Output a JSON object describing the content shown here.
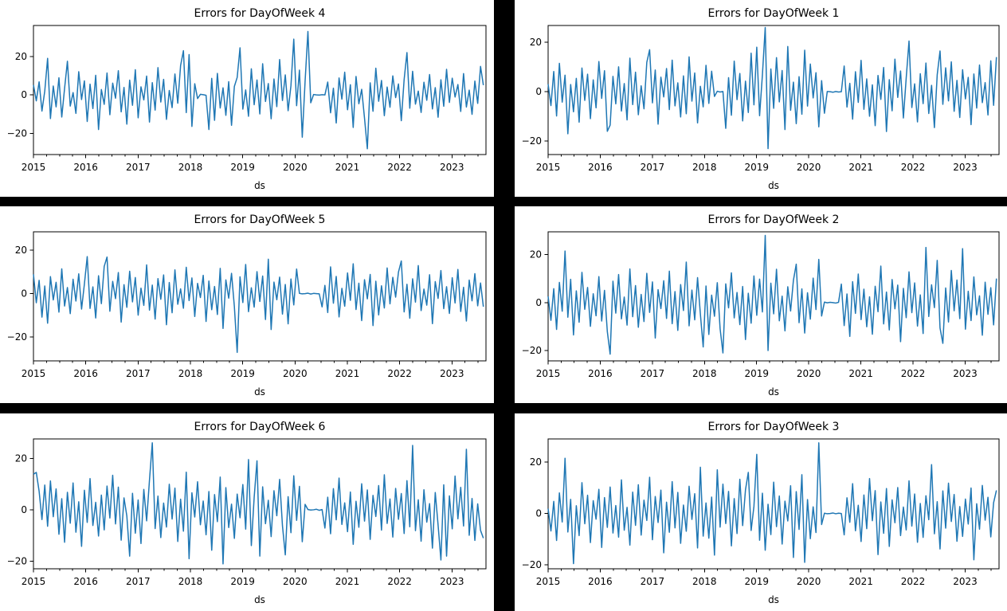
{
  "figure": {
    "background_color": "#000000",
    "panel_color": "#ffffff",
    "line_color": "#1f77b4",
    "spine_color": "#000000",
    "text_color": "#000000"
  },
  "chart_data": [
    {
      "type": "line",
      "position": "top-left",
      "title": "Errors for DayOfWeek 4",
      "xlabel": "ds",
      "ylabel": "",
      "x_start": 2015.0,
      "x_end": 2023.6,
      "xlim": [
        2015.0,
        2023.65
      ],
      "ylim": [
        -31.0,
        36.1
      ],
      "x_ticks": [
        2015,
        2016,
        2017,
        2018,
        2019,
        2020,
        2021,
        2022,
        2023
      ],
      "x_tick_labels": [
        "2015",
        "2016",
        "2017",
        "2018",
        "2019",
        "2020",
        "2021",
        "2022",
        "2023"
      ],
      "y_ticks": [
        -20,
        0,
        20
      ],
      "y_tick_labels": [
        "−20",
        "0",
        "20"
      ],
      "grid": false,
      "values": [
        5.2,
        -3.1,
        6.8,
        -8.4,
        2.1,
        19.0,
        -12.3,
        4.6,
        -6.2,
        8.9,
        -11.5,
        3.4,
        17.5,
        -5.8,
        1.2,
        -9.6,
        12.1,
        -2.4,
        7.3,
        -13.8,
        5.6,
        -7.1,
        10.2,
        -18.0,
        2.8,
        -4.9,
        11.4,
        -10.3,
        6.1,
        -1.7,
        12.6,
        -8.8,
        3.9,
        -15.2,
        7.7,
        -5.4,
        13.1,
        -11.9,
        4.2,
        -2.6,
        9.8,
        -14.1,
        6.4,
        -7.9,
        14.2,
        -3.7,
        8.1,
        -12.7,
        2.3,
        -6.6,
        10.9,
        -4.3,
        15.3,
        23.0,
        -9.2,
        21.0,
        -16.4,
        5.8,
        -1.9,
        0.3,
        0.1,
        -0.2,
        -18.0,
        8.6,
        -13.2,
        11.2,
        -6.8,
        3.7,
        -10.6,
        6.9,
        -15.8,
        4.4,
        9.1,
        24.5,
        -7.4,
        2.6,
        -11.1,
        13.6,
        -5.1,
        7.8,
        -9.9,
        16.2,
        -3.4,
        5.9,
        -12.4,
        8.3,
        -6.1,
        18.4,
        -2.9,
        10.4,
        -8.2,
        4.8,
        29.0,
        -5.6,
        12.9,
        -22.0,
        7.1,
        33.0,
        -4.1,
        0.2,
        0.0,
        -0.1,
        0.1,
        0.0,
        6.7,
        -9.3,
        3.5,
        -14.6,
        8.8,
        -2.2,
        11.8,
        -7.7,
        5.3,
        -16.9,
        9.6,
        -4.6,
        2.9,
        -12.1,
        -28.0,
        6.3,
        -8.5,
        13.9,
        -3.3,
        7.5,
        -10.8,
        4.1,
        -6.4,
        9.9,
        -1.4,
        5.7,
        -13.4,
        8.0,
        22.0,
        -6.9,
        12.3,
        -4.8,
        2.0,
        -9.1,
        6.6,
        -2.8,
        10.6,
        -7.3,
        3.8,
        -11.6,
        7.9,
        -5.9,
        13.3,
        -3.9,
        8.7,
        -1.1,
        5.4,
        -8.6,
        11.1,
        -6.3,
        2.5,
        -10.1,
        7.2,
        -4.4,
        14.8,
        5.1
      ]
    },
    {
      "type": "line",
      "position": "top-right",
      "title": "Errors for DayOfWeek 1",
      "xlabel": "ds",
      "ylabel": "",
      "x_start": 2015.0,
      "x_end": 2023.6,
      "xlim": [
        2015.0,
        2023.65
      ],
      "ylim": [
        -25.4,
        26.8
      ],
      "x_ticks": [
        2015,
        2016,
        2017,
        2018,
        2019,
        2020,
        2021,
        2022,
        2023
      ],
      "x_tick_labels": [
        "2015",
        "2016",
        "2017",
        "2018",
        "2019",
        "2020",
        "2021",
        "2022",
        "2023"
      ],
      "y_ticks": [
        -20,
        0,
        20
      ],
      "y_tick_labels": [
        "−20",
        "0",
        "20"
      ],
      "grid": false,
      "values": [
        3.1,
        -5.6,
        8.2,
        -9.8,
        11.5,
        -4.2,
        6.7,
        -17.0,
        2.9,
        -8.1,
        5.4,
        -12.3,
        9.6,
        -3.5,
        7.1,
        -10.9,
        4.8,
        -6.5,
        12.2,
        -2.7,
        8.5,
        -16.0,
        -13.5,
        6.2,
        -4.9,
        10.1,
        -7.8,
        3.3,
        -11.4,
        13.6,
        -5.2,
        7.9,
        -9.3,
        2.4,
        -6.9,
        11.9,
        17.0,
        -4.5,
        8.8,
        -13.1,
        5.9,
        -2.1,
        9.4,
        -7.2,
        12.8,
        -5.7,
        3.6,
        -10.2,
        6.4,
        -8.9,
        14.1,
        -3.8,
        7.6,
        -12.6,
        2.2,
        -6.1,
        10.7,
        -4.7,
        8.3,
        -1.9,
        0.2,
        -0.1,
        0.1,
        -14.8,
        5.7,
        -9.5,
        12.4,
        -3.2,
        7.4,
        -11.8,
        4.3,
        -8.4,
        15.6,
        -5.3,
        18.0,
        -9.7,
        6.8,
        26.0,
        -23.0,
        9.2,
        -6.7,
        13.8,
        -4.1,
        8.6,
        -15.3,
        18.3,
        -7.5,
        3.9,
        -12.9,
        6.1,
        -9.1,
        16.8,
        -5.8,
        11.2,
        -2.5,
        7.7,
        -14.2,
        4.5,
        -8.7,
        0.1,
        0.0,
        -0.2,
        0.1,
        -0.1,
        0.0,
        10.4,
        -6.2,
        3.4,
        -11.1,
        8.1,
        -4.3,
        12.7,
        -7.1,
        5.2,
        -9.9,
        2.8,
        -13.7,
        6.6,
        -3.1,
        9.8,
        -16.1,
        4.9,
        -7.7,
        13.2,
        -2.3,
        8.4,
        -10.6,
        5.5,
        20.5,
        -6.4,
        3.2,
        -12.2,
        7.3,
        -4.8,
        11.6,
        -8.8,
        2.6,
        -14.5,
        6.9,
        16.5,
        -5.1,
        9.7,
        -3.7,
        12.1,
        -7.9,
        4.6,
        -10.4,
        8.9,
        -2.9,
        5.8,
        -13.3,
        7.2,
        -6.6,
        10.8,
        -4.4,
        3.7,
        -9.4,
        12.5,
        -5.5,
        14.0
      ]
    },
    {
      "type": "line",
      "position": "middle-left",
      "title": "Errors for DayOfWeek 5",
      "xlabel": "ds",
      "ylabel": "",
      "x_start": 2015.0,
      "x_end": 2023.6,
      "xlim": [
        2015.0,
        2023.65
      ],
      "ylim": [
        -30.9,
        28.4
      ],
      "x_ticks": [
        2015,
        2016,
        2017,
        2018,
        2019,
        2020,
        2021,
        2022,
        2023
      ],
      "x_tick_labels": [
        "2015",
        "2016",
        "2017",
        "2018",
        "2019",
        "2020",
        "2021",
        "2022",
        "2023"
      ],
      "y_ticks": [
        -20,
        0,
        20
      ],
      "y_tick_labels": [
        "−20",
        "0",
        "20"
      ],
      "grid": false,
      "values": [
        8.9,
        -4.2,
        6.1,
        -10.8,
        3.5,
        -13.6,
        7.8,
        -2.9,
        5.2,
        -8.5,
        11.4,
        -5.7,
        2.8,
        -9.2,
        6.6,
        -3.4,
        9.1,
        -7.1,
        4.4,
        17.0,
        -6.8,
        3.1,
        -11.2,
        8.2,
        -4.6,
        12.5,
        16.8,
        -8.1,
        5.6,
        -2.3,
        9.7,
        -13.1,
        4.1,
        -6.3,
        10.3,
        -3.8,
        7.4,
        -9.9,
        2.5,
        -5.4,
        13.2,
        -7.6,
        3.9,
        -11.7,
        6.9,
        -2.6,
        8.6,
        -14.3,
        5.1,
        -8.8,
        10.9,
        -4.9,
        2.2,
        -6.7,
        12.1,
        -3.2,
        7.2,
        -10.5,
        4.7,
        -1.8,
        8.4,
        -12.8,
        5.8,
        -7.4,
        3.3,
        -9.6,
        11.6,
        -16.0,
        6.3,
        -2.1,
        9.3,
        -5.9,
        -27.0,
        7.7,
        -4.1,
        13.4,
        -8.3,
        2.7,
        -6.2,
        10.1,
        -3.6,
        8.1,
        -11.9,
        15.8,
        -16.5,
        5.3,
        -2.8,
        7.6,
        -9.4,
        4.2,
        -13.9,
        6.7,
        -5.2,
        11.3,
        0.1,
        -0.1,
        0.0,
        0.2,
        -0.2,
        0.1,
        0.0,
        -0.1,
        -6.1,
        3.8,
        -8.7,
        12.3,
        -4.4,
        7.9,
        -10.7,
        2.4,
        -5.8,
        9.5,
        -3.1,
        13.7,
        -7.3,
        4.8,
        -12.4,
        6.4,
        -2.4,
        8.8,
        -14.7,
        5.7,
        -9.8,
        3.6,
        -6.6,
        11.8,
        -4.7,
        7.5,
        -1.6,
        9.9,
        15.0,
        -8.4,
        4.3,
        -11.3,
        6.8,
        -3.9,
        12.9,
        -7.8,
        2.1,
        -5.3,
        8.7,
        -13.8,
        5.5,
        -2.2,
        10.6,
        -6.9,
        3.2,
        -9.1,
        7.3,
        -4.3,
        11.1,
        -8.2,
        2.9,
        -12.6,
        6.2,
        -3.3,
        9.2,
        -5.6,
        4.9,
        -6.0
      ]
    },
    {
      "type": "line",
      "position": "middle-right",
      "title": "Errors for DayOfWeek 2",
      "xlabel": "ds",
      "ylabel": "",
      "x_start": 2015.0,
      "x_end": 2023.6,
      "xlim": [
        2015.0,
        2023.65
      ],
      "ylim": [
        -24.3,
        29.5
      ],
      "x_ticks": [
        2015,
        2016,
        2017,
        2018,
        2019,
        2020,
        2021,
        2022,
        2023
      ],
      "x_tick_labels": [
        "2015",
        "2016",
        "2017",
        "2018",
        "2019",
        "2020",
        "2021",
        "2022",
        "2023"
      ],
      "y_ticks": [
        -20,
        0,
        20
      ],
      "y_tick_labels": [
        "−20",
        "0",
        "20"
      ],
      "grid": false,
      "values": [
        2.6,
        -7.4,
        5.8,
        -11.2,
        8.4,
        -3.6,
        21.5,
        -6.1,
        9.7,
        -13.5,
        4.9,
        -8.2,
        12.6,
        -2.8,
        6.3,
        -9.9,
        3.7,
        -5.5,
        10.8,
        -7.7,
        5.1,
        -12.1,
        -21.5,
        8.9,
        -4.4,
        11.7,
        -6.8,
        2.3,
        -9.4,
        14.0,
        -5.9,
        7.1,
        -10.3,
        3.4,
        -7.9,
        12.2,
        -4.1,
        8.6,
        -14.8,
        5.4,
        -2.5,
        9.1,
        -6.6,
        13.1,
        -8.8,
        4.6,
        -11.6,
        7.5,
        -3.3,
        16.9,
        -9.7,
        5.2,
        -7.2,
        10.4,
        -4.8,
        -18.5,
        6.9,
        -13.3,
        3.1,
        -5.7,
        8.3,
        -10.9,
        -21.0,
        7.8,
        -2.2,
        12.4,
        -6.4,
        4.2,
        -9.2,
        6.7,
        -15.4,
        3.9,
        -8.6,
        11.1,
        -5.3,
        9.8,
        -3.9,
        28.0,
        -20.0,
        8.1,
        -4.7,
        13.9,
        -7.6,
        2.7,
        -11.8,
        6.6,
        -3.5,
        9.3,
        16.0,
        -8.4,
        5.7,
        -12.7,
        4.1,
        -6.9,
        10.2,
        -2.9,
        18.0,
        -5.6,
        0.2,
        -0.1,
        0.1,
        0.0,
        -0.2,
        0.1,
        7.7,
        -9.6,
        3.6,
        -14.1,
        8.7,
        -4.5,
        11.9,
        -7.1,
        5.6,
        -10.1,
        2.4,
        -13.2,
        6.8,
        -3.8,
        15.2,
        -8.9,
        4.4,
        -11.4,
        9.6,
        -2.6,
        7.3,
        -16.3,
        5.9,
        -6.3,
        12.8,
        -4.2,
        8.2,
        -9.8,
        3.2,
        -12.9,
        23.0,
        -5.8,
        7.4,
        -2.1,
        17.6,
        -10.6,
        -17.0,
        6.1,
        -8.1,
        13.4,
        -3.4,
        9.4,
        -6.7,
        22.5,
        -11.1,
        4.7,
        -7.5,
        10.7,
        -5.1,
        2.8,
        -13.6,
        8.5,
        -4.9,
        6.2,
        -9.3,
        10.0
      ]
    },
    {
      "type": "line",
      "position": "bottom-left",
      "title": "Errors for DayOfWeek 6",
      "xlabel": "ds",
      "ylabel": "",
      "x_start": 2015.0,
      "x_end": 2023.6,
      "xlim": [
        2015.0,
        2023.65
      ],
      "ylim": [
        -22.9,
        27.5
      ],
      "x_ticks": [
        2015,
        2016,
        2017,
        2018,
        2019,
        2020,
        2021,
        2022,
        2023
      ],
      "x_tick_labels": [
        "2015",
        "2016",
        "2017",
        "2018",
        "2019",
        "2020",
        "2021",
        "2022",
        "2023"
      ],
      "y_ticks": [
        -20,
        0,
        20
      ],
      "y_tick_labels": [
        "−20",
        "0",
        "20"
      ],
      "grid": false,
      "values": [
        13.8,
        14.5,
        7.2,
        -3.8,
        9.6,
        -6.4,
        11.2,
        -2.7,
        8.1,
        -9.5,
        4.3,
        -12.6,
        6.8,
        -5.2,
        10.4,
        -8.7,
        3.1,
        -14.2,
        7.6,
        -4.9,
        12.1,
        -6.1,
        2.9,
        -10.2,
        5.7,
        -7.8,
        9.2,
        -3.2,
        13.4,
        -5.5,
        8.8,
        -11.8,
        4.6,
        -2.4,
        -18.0,
        6.4,
        -9.1,
        3.8,
        -13.1,
        7.9,
        -4.3,
        11.5,
        26.0,
        -7.3,
        5.3,
        -10.8,
        2.6,
        -6.7,
        9.9,
        -3.6,
        8.4,
        -12.3,
        4.1,
        -8.3,
        14.6,
        -19.0,
        6.6,
        -2.8,
        10.9,
        -5.8,
        3.4,
        -9.7,
        7.1,
        -15.7,
        5.9,
        -4.6,
        12.7,
        -21.0,
        8.6,
        -6.9,
        2.2,
        -11.1,
        6.1,
        -3.1,
        9.8,
        -7.5,
        19.5,
        -13.9,
        4.8,
        19.0,
        -18.0,
        8.9,
        -5.4,
        3.7,
        -10.4,
        7.4,
        -2.3,
        11.8,
        -6.2,
        -17.5,
        5.1,
        -8.9,
        13.2,
        -4.1,
        9.1,
        -12.4,
        2.1,
        0.1,
        -0.1,
        0.0,
        0.2,
        -0.2,
        0.1,
        -7.1,
        4.9,
        -9.3,
        8.2,
        -3.9,
        12.3,
        -5.7,
        2.7,
        -8.5,
        6.9,
        -13.4,
        3.3,
        -6.8,
        10.1,
        -4.4,
        7.7,
        -11.5,
        5.6,
        -2.6,
        9.4,
        -7.9,
        13.6,
        -5.3,
        4.2,
        -10.6,
        8.3,
        -3.7,
        6.3,
        -9.2,
        11.3,
        -6.6,
        25.0,
        -8.1,
        3.9,
        -12.2,
        7.8,
        -4.8,
        2.4,
        -14.9,
        6.7,
        -5.9,
        -19.5,
        9.7,
        -18.0,
        5.4,
        -7.4,
        13.1,
        -3.5,
        8.7,
        -6.3,
        23.5,
        -9.9,
        4.4,
        -11.9,
        2.3,
        -8.0,
        -11.0
      ]
    },
    {
      "type": "line",
      "position": "bottom-right",
      "title": "Errors for DayOfWeek 3",
      "xlabel": "ds",
      "ylabel": "",
      "x_start": 2015.0,
      "x_end": 2023.6,
      "xlim": [
        2015.0,
        2023.65
      ],
      "ylim": [
        -21.5,
        29.0
      ],
      "x_ticks": [
        2015,
        2016,
        2017,
        2018,
        2019,
        2020,
        2021,
        2022,
        2023
      ],
      "x_tick_labels": [
        "2015",
        "2016",
        "2017",
        "2018",
        "2019",
        "2020",
        "2021",
        "2022",
        "2023"
      ],
      "y_ticks": [
        -20,
        0,
        20
      ],
      "y_tick_labels": [
        "−20",
        "0",
        "20"
      ],
      "grid": false,
      "values": [
        1.9,
        -6.8,
        4.7,
        -10.5,
        8.0,
        -3.3,
        21.5,
        -7.2,
        5.5,
        -19.5,
        3.0,
        -8.6,
        12.0,
        -4.0,
        7.1,
        -11.3,
        5.0,
        -2.2,
        9.4,
        -13.2,
        6.2,
        -5.4,
        10.3,
        -7.6,
        3.1,
        -9.2,
        13.1,
        -6.5,
        2.4,
        -12.3,
        8.3,
        -4.6,
        11.2,
        -8.4,
        5.2,
        -2.7,
        14.1,
        -10.2,
        6.6,
        -3.5,
        9.1,
        -15.3,
        4.4,
        -7.3,
        12.4,
        -5.6,
        8.2,
        -11.6,
        3.3,
        -6.9,
        10.6,
        -2.3,
        7.7,
        -13.4,
        18.0,
        -8.8,
        4.1,
        -9.6,
        6.4,
        -16.2,
        17.0,
        -5.3,
        11.4,
        -3.9,
        8.6,
        -12.6,
        5.8,
        -7.8,
        13.3,
        -4.7,
        9.2,
        16.0,
        -6.6,
        2.8,
        23.0,
        -10.4,
        7.9,
        -14.3,
        3.6,
        -8.2,
        12.2,
        -5.1,
        6.8,
        -11.9,
        4.8,
        -2.9,
        10.8,
        -17.1,
        8.5,
        -6.2,
        15.1,
        -19.0,
        5.4,
        -9.8,
        2.6,
        -7.4,
        27.5,
        -4.3,
        0.1,
        -0.1,
        0.0,
        0.2,
        -0.1,
        0.1,
        0.0,
        -8.3,
        6.1,
        -3.4,
        11.6,
        -6.7,
        3.2,
        -10.9,
        7.2,
        -5.9,
        13.6,
        -2.8,
        8.9,
        -16.0,
        4.5,
        -7.7,
        9.7,
        -12.8,
        5.3,
        -3.6,
        10.1,
        -8.6,
        2.5,
        -6.4,
        12.7,
        -4.9,
        7.6,
        -11.2,
        3.9,
        -9.3,
        6.9,
        -2.4,
        19.0,
        -7.9,
        4.6,
        -13.8,
        8.8,
        -5.7,
        11.8,
        -3.1,
        7.4,
        -10.8,
        2.7,
        -8.9,
        5.6,
        -4.1,
        9.9,
        -18.0,
        3.8,
        -6.1,
        10.9,
        -2.6,
        6.3,
        -9.1,
        4.2,
        9.0
      ]
    }
  ]
}
